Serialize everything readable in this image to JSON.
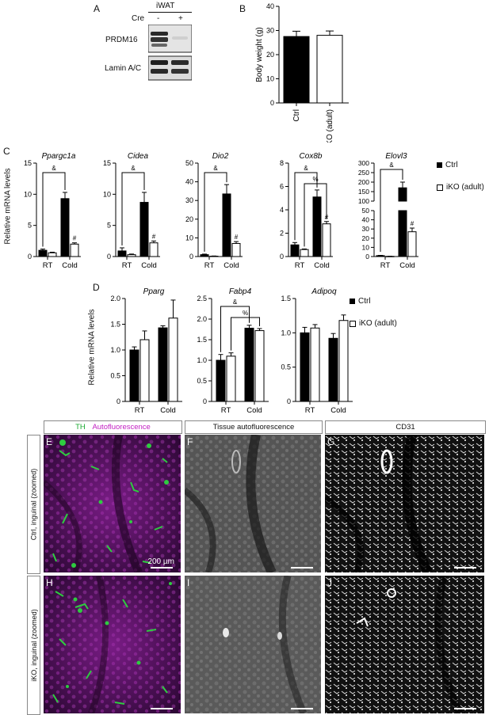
{
  "panels": {
    "A": "A",
    "B": "B",
    "C": "C",
    "D": "D",
    "E": "E",
    "F": "F",
    "G": "G",
    "H": "H",
    "I": "I",
    "J": "J"
  },
  "blot": {
    "tissue": "iWAT",
    "cre_label": "Cre",
    "cre_values": [
      "-",
      "+"
    ],
    "bands": [
      "PRDM16",
      "Lamin A/C"
    ]
  },
  "legend": {
    "ctrl": "Ctrl",
    "ko": "iKO (adult)"
  },
  "axis_label": "Relative mRNA levels",
  "sig": {
    "amp": "&",
    "pct": "%",
    "hash": "#"
  },
  "colors": {
    "ctrl": "#000000",
    "ko": "#ffffff",
    "th_green": "#2ecc40",
    "autofluor_magenta": "#c21fc2"
  },
  "chart_data": [
    {
      "id": "B",
      "type": "bar",
      "title": "",
      "ylabel": "Body weight (g)",
      "categories": [
        "Ctrl",
        "iKO (adult)"
      ],
      "values": [
        27.5,
        28.0
      ],
      "errors": [
        2.2,
        1.8
      ],
      "ylim": [
        0,
        40
      ],
      "yticks": [
        "0",
        "10",
        "20",
        "30",
        "40"
      ]
    },
    {
      "id": "C1",
      "type": "bar",
      "title": "Ppargc1a",
      "categories": [
        "RT",
        "Cold"
      ],
      "series": [
        {
          "name": "Ctrl",
          "values": [
            1.0,
            9.3
          ],
          "errors": [
            0.2,
            1.0
          ]
        },
        {
          "name": "iKO (adult)",
          "values": [
            0.6,
            2.0
          ],
          "errors": [
            0.1,
            0.2
          ]
        }
      ],
      "ylim": [
        0,
        15
      ],
      "yticks": [
        "0",
        "5",
        "10",
        "15"
      ],
      "annotations": [
        "&",
        "#"
      ]
    },
    {
      "id": "C2",
      "type": "bar",
      "title": "Cidea",
      "categories": [
        "RT",
        "Cold"
      ],
      "series": [
        {
          "name": "Ctrl",
          "values": [
            0.9,
            8.7
          ],
          "errors": [
            0.5,
            1.6
          ]
        },
        {
          "name": "iKO (adult)",
          "values": [
            0.3,
            2.2
          ],
          "errors": [
            0.1,
            0.3
          ]
        }
      ],
      "ylim": [
        0,
        15
      ],
      "yticks": [
        "0",
        "5",
        "10",
        "15"
      ],
      "annotations": [
        "&",
        "#"
      ]
    },
    {
      "id": "C3",
      "type": "bar",
      "title": "Dio2",
      "categories": [
        "RT",
        "Cold"
      ],
      "series": [
        {
          "name": "Ctrl",
          "values": [
            1.0,
            33.5
          ],
          "errors": [
            0.3,
            5.0
          ]
        },
        {
          "name": "iKO (adult)",
          "values": [
            0.2,
            7.0
          ],
          "errors": [
            0.1,
            1.0
          ]
        }
      ],
      "ylim": [
        0,
        50
      ],
      "yticks": [
        "0",
        "10",
        "20",
        "30",
        "40",
        "50"
      ],
      "annotations": [
        "&",
        "#"
      ]
    },
    {
      "id": "C4",
      "type": "bar",
      "title": "Cox8b",
      "categories": [
        "RT",
        "Cold"
      ],
      "series": [
        {
          "name": "Ctrl",
          "values": [
            1.0,
            5.1
          ],
          "errors": [
            0.2,
            0.6
          ]
        },
        {
          "name": "iKO (adult)",
          "values": [
            0.6,
            2.8
          ],
          "errors": [
            0.05,
            0.2
          ]
        }
      ],
      "ylim": [
        0,
        8
      ],
      "yticks": [
        "0",
        "2",
        "4",
        "6",
        "8"
      ],
      "annotations": [
        "&",
        "%",
        "#"
      ]
    },
    {
      "id": "C5",
      "type": "bar",
      "title": "Elovl3",
      "categories": [
        "RT",
        "Cold"
      ],
      "series": [
        {
          "name": "Ctrl",
          "values": [
            1.0,
            170
          ],
          "errors": [
            0.3,
            30
          ]
        },
        {
          "name": "iKO (adult)",
          "values": [
            0.2,
            27
          ],
          "errors": [
            0.1,
            4
          ]
        }
      ],
      "ylim": [
        0,
        300
      ],
      "axis_break": [
        50,
        100
      ],
      "yticks": [
        "0",
        "10",
        "20",
        "30",
        "40",
        "50",
        "100",
        "150",
        "200",
        "250",
        "300"
      ],
      "annotations": [
        "&",
        "#"
      ]
    },
    {
      "id": "D1",
      "type": "bar",
      "title": "Pparg",
      "categories": [
        "RT",
        "Cold"
      ],
      "series": [
        {
          "name": "Ctrl",
          "values": [
            1.0,
            1.43
          ],
          "errors": [
            0.06,
            0.04
          ]
        },
        {
          "name": "iKO (adult)",
          "values": [
            1.2,
            1.62
          ],
          "errors": [
            0.17,
            0.35
          ]
        }
      ],
      "ylim": [
        0,
        2.0
      ],
      "yticks": [
        "0",
        "0.5",
        "1.0",
        "1.5",
        "2.0"
      ],
      "annotations": []
    },
    {
      "id": "D2",
      "type": "bar",
      "title": "Fabp4",
      "categories": [
        "RT",
        "Cold"
      ],
      "series": [
        {
          "name": "Ctrl",
          "values": [
            1.0,
            1.78
          ],
          "errors": [
            0.14,
            0.07
          ]
        },
        {
          "name": "iKO (adult)",
          "values": [
            1.1,
            1.72
          ],
          "errors": [
            0.08,
            0.05
          ]
        }
      ],
      "ylim": [
        0,
        2.5
      ],
      "yticks": [
        "0",
        "0.5",
        "1.0",
        "1.5",
        "2.0",
        "2.5"
      ],
      "annotations": [
        "&",
        "%"
      ]
    },
    {
      "id": "D3",
      "type": "bar",
      "title": "Adipoq",
      "categories": [
        "RT",
        "Cold"
      ],
      "series": [
        {
          "name": "Ctrl",
          "values": [
            1.0,
            0.92
          ],
          "errors": [
            0.08,
            0.07
          ]
        },
        {
          "name": "iKO (adult)",
          "values": [
            1.07,
            1.18
          ],
          "errors": [
            0.05,
            0.08
          ]
        }
      ],
      "ylim": [
        0,
        1.5
      ],
      "yticks": [
        "0",
        "0.5",
        "1.0",
        "1.5"
      ],
      "annotations": []
    }
  ],
  "micro": {
    "headers": {
      "th": "TH",
      "autofluor": "Autofluorescence",
      "tissue_autofluor": "Tissue autofluorescence",
      "cd31": "CD31"
    },
    "rows": [
      "Ctrl, inguinal (zoomed)",
      "iKO, inguinal (zoomed)"
    ],
    "scale": "200 µm"
  }
}
